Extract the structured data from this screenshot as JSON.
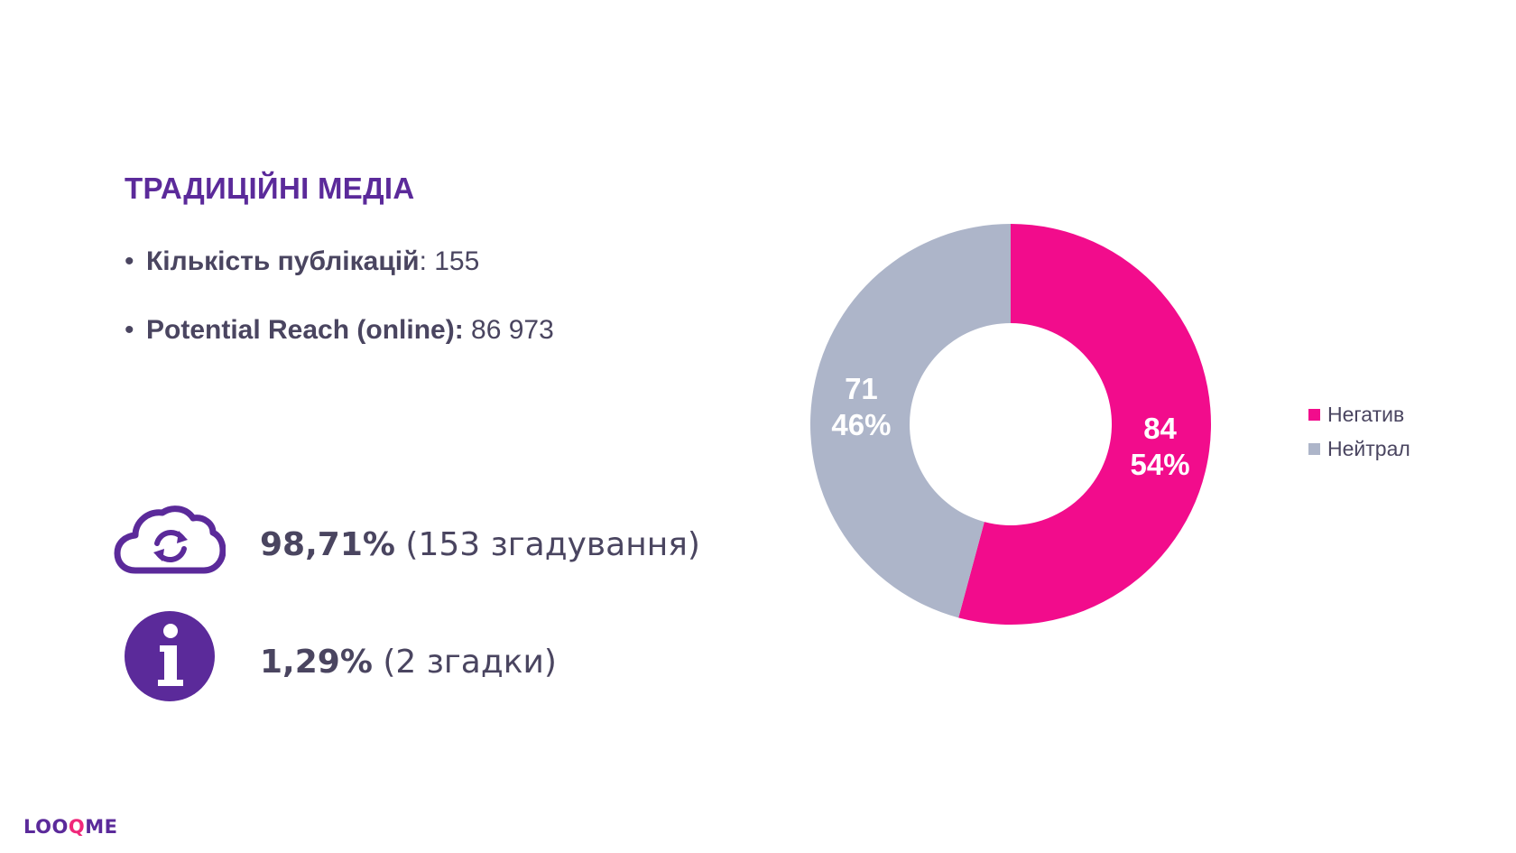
{
  "slide": {
    "title": "ТРАДИЦІЙНІ МЕДІА",
    "bullets": [
      {
        "label": "Кількість публікацій",
        "sep": ":",
        "value": " 155"
      },
      {
        "label": "Potential Reach (online):",
        "sep": "",
        "value": " 86 973"
      }
    ],
    "stats": [
      {
        "icon": "cloud-sync-icon",
        "percent": "98,71%",
        "detail": " (153 згадування)"
      },
      {
        "icon": "info-icon",
        "percent": "1,29%",
        "detail": " (2 згадки)"
      }
    ],
    "logo": {
      "part1": "LOO",
      "q": "Q",
      "part2": "ME"
    },
    "colors": {
      "accent": "#5b2a9a",
      "negative": "#f20c8c",
      "neutral": "#adb5c9",
      "text": "#4a4560",
      "logo_q": "#f0287a"
    }
  },
  "chart_data": {
    "type": "pie",
    "subtype": "donut",
    "series": [
      {
        "name": "Негатив",
        "value": 84,
        "percent": "54%",
        "color": "#f20c8c"
      },
      {
        "name": "Нейтрал",
        "value": 71,
        "percent": "46%",
        "color": "#adb5c9"
      }
    ],
    "legend_position": "right"
  }
}
